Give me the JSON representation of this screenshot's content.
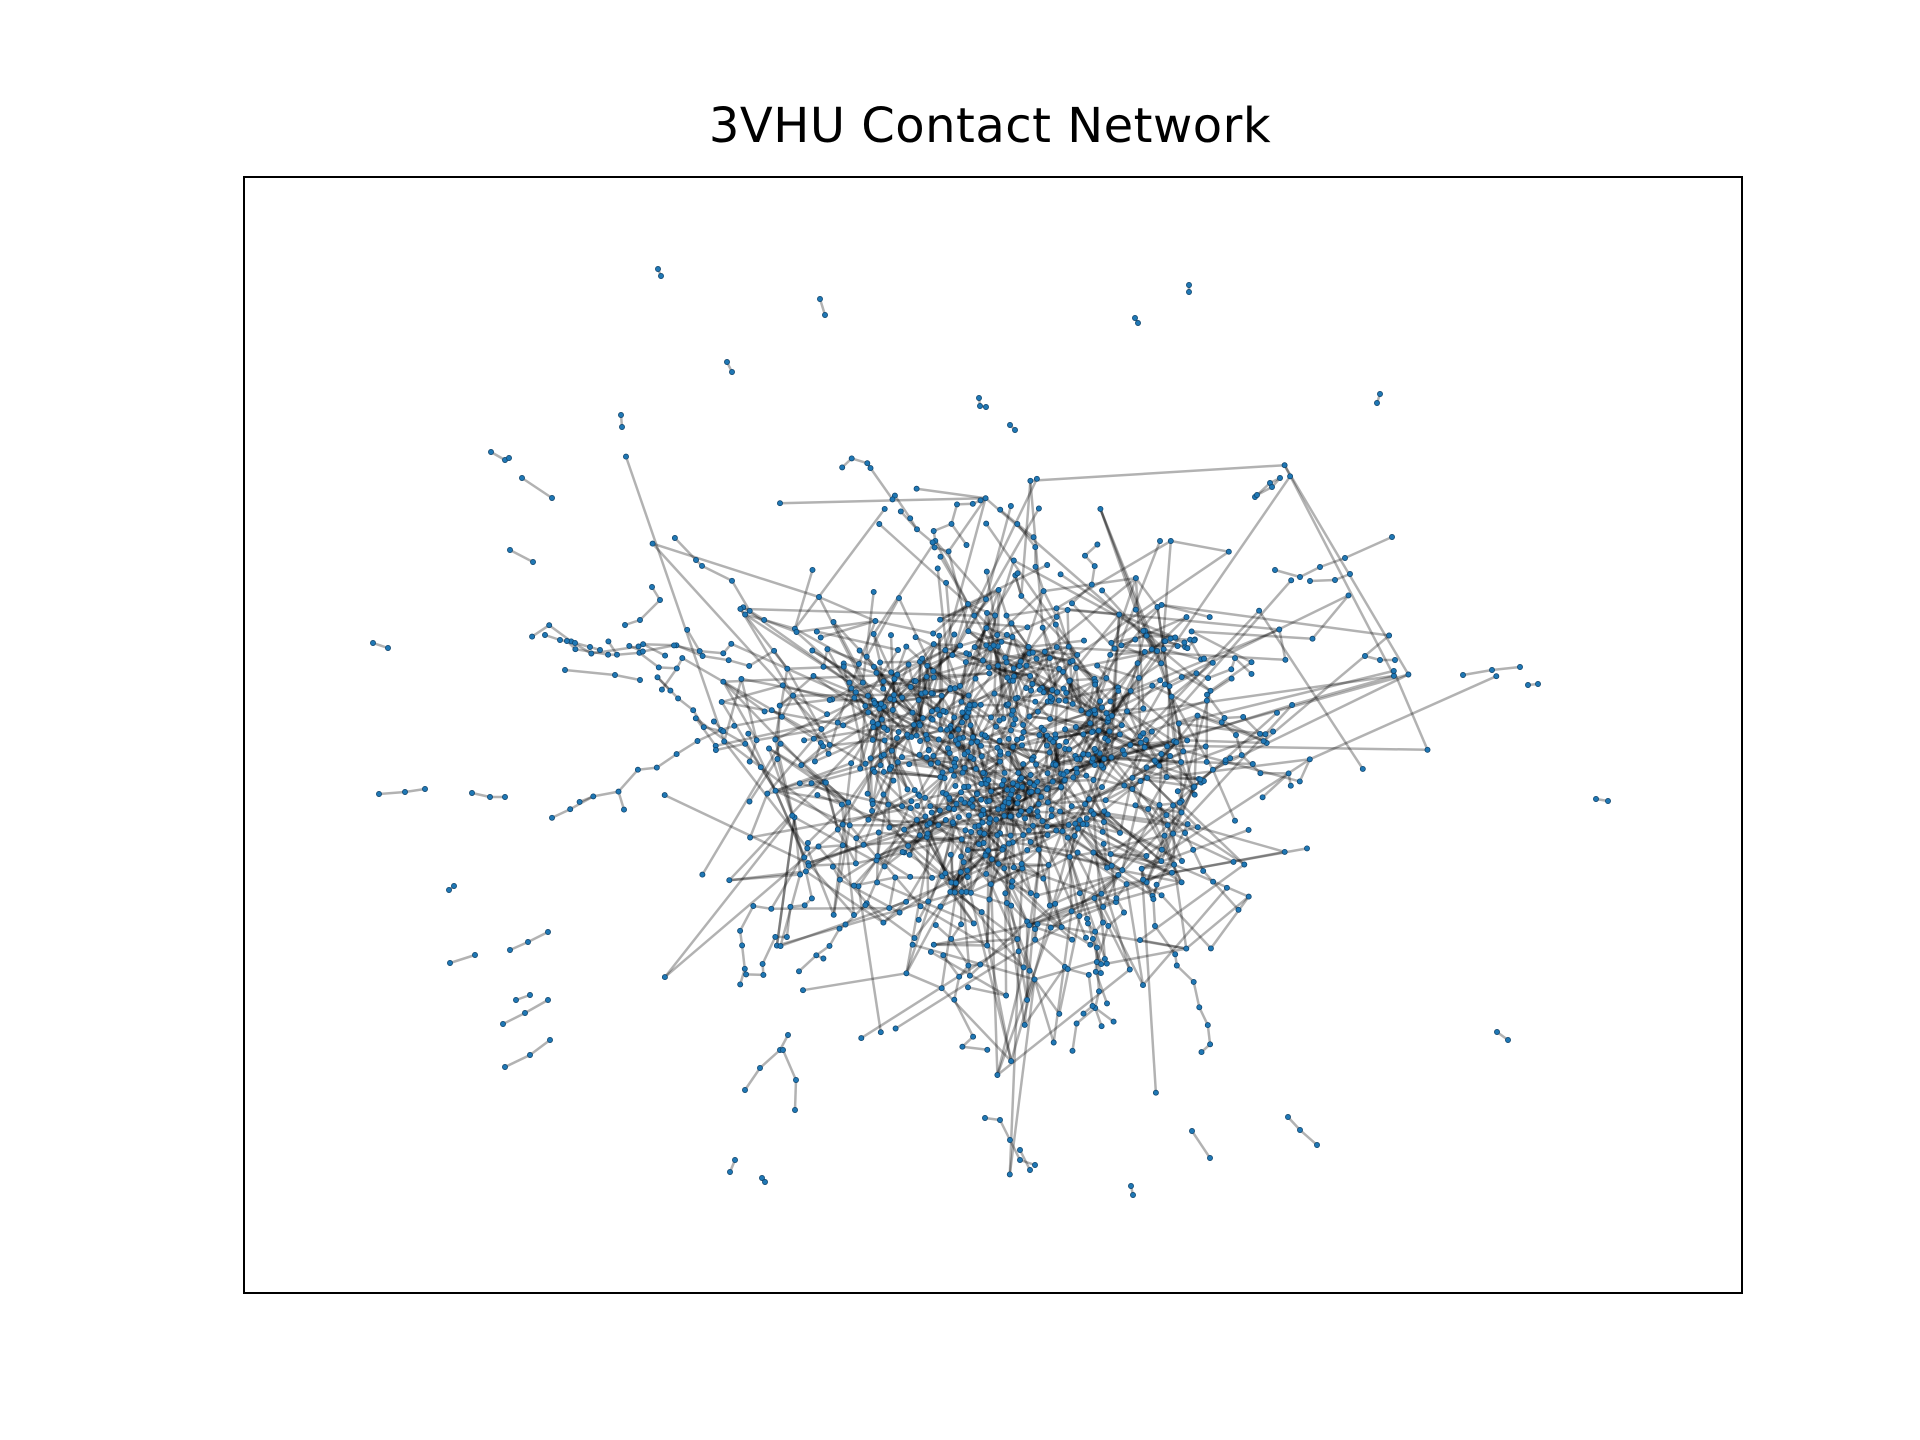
{
  "title": "3VHU Contact Network",
  "style": {
    "node_color": "#1f77b4",
    "edge_color": "#000000",
    "edge_opacity": 0.3,
    "background": "#ffffff",
    "frame_color": "#000000"
  },
  "graph": {
    "type": "network",
    "axes_ticks": false
  }
}
